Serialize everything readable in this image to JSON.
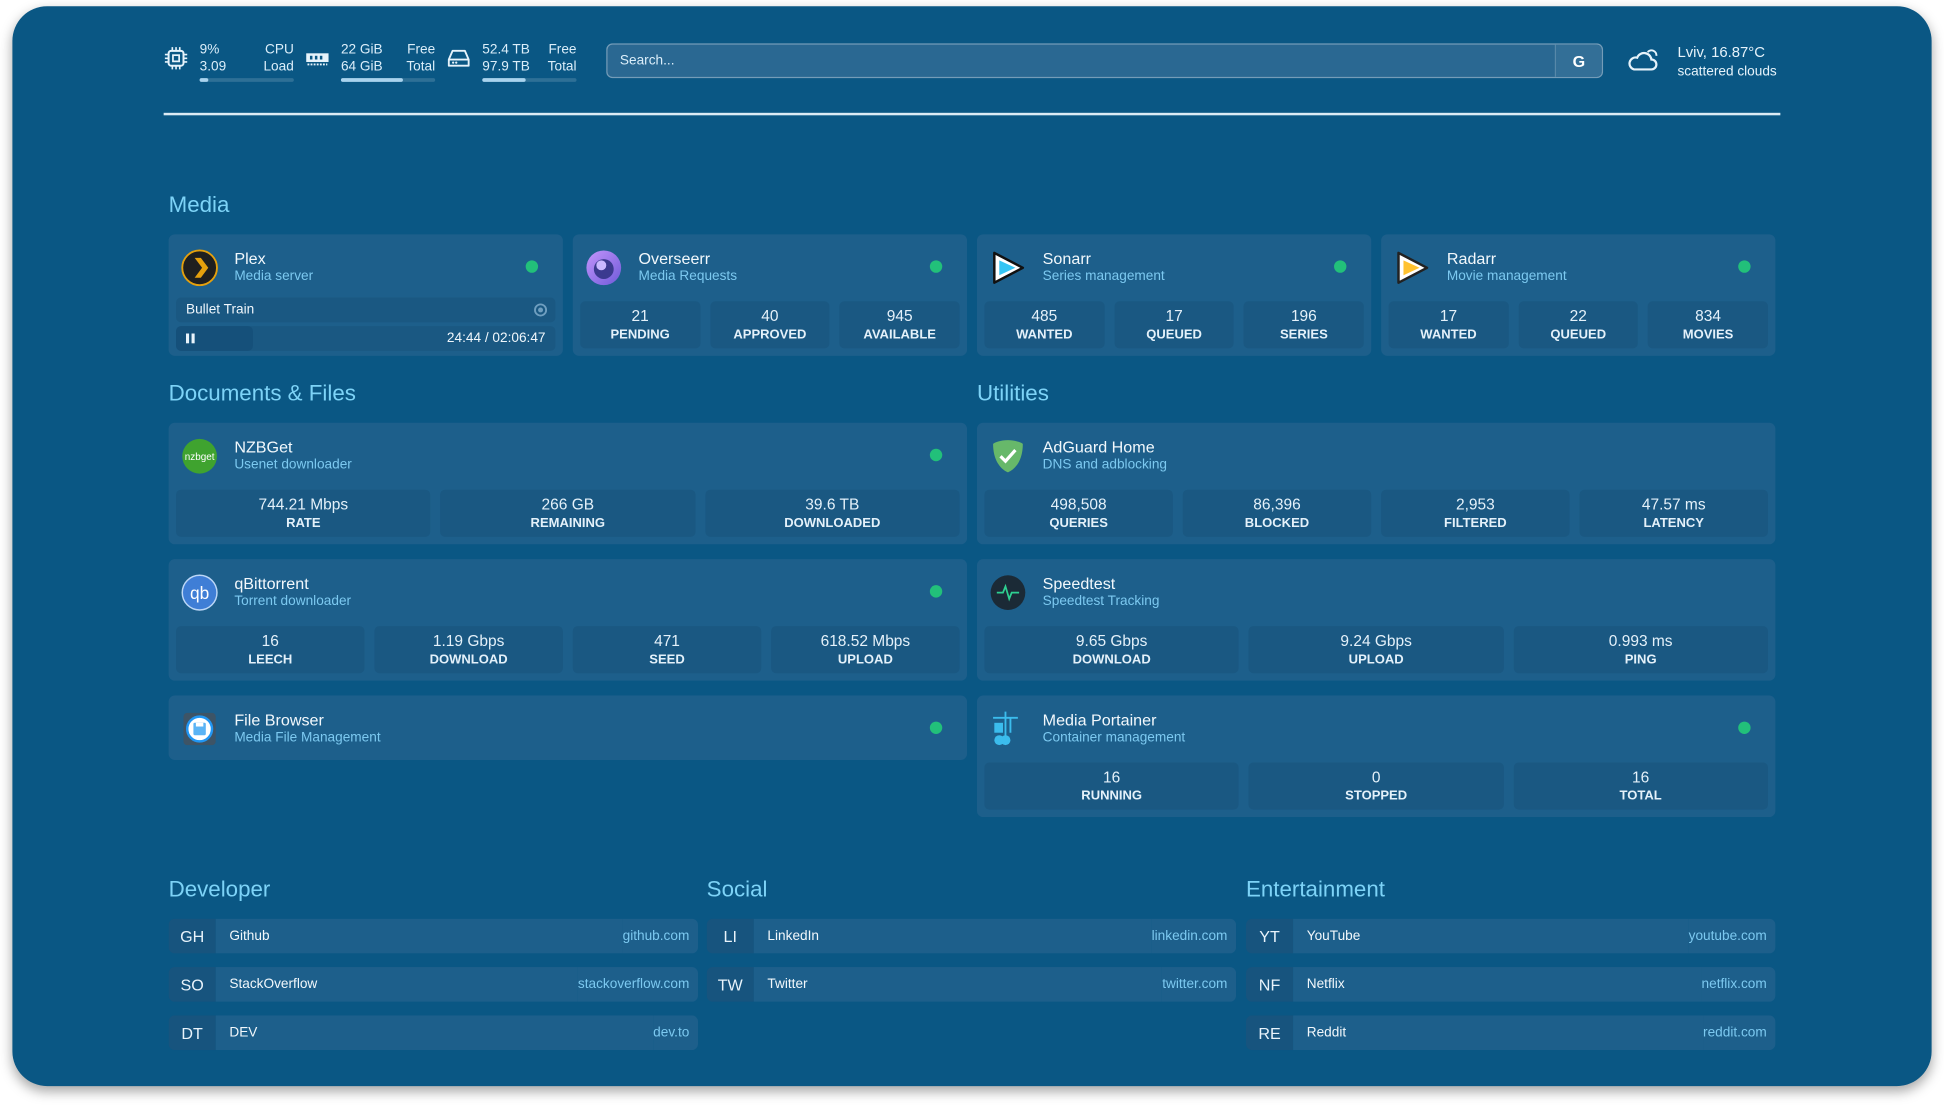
{
  "topbar": {
    "cpu": {
      "icon": "cpu-icon",
      "v1": "9%",
      "l1": "CPU",
      "v2": "3.09",
      "l2": "Load",
      "fill": 0.09
    },
    "memory": {
      "icon": "memory-icon",
      "v1": "22 GiB",
      "l1": "Free",
      "v2": "64 GiB",
      "l2": "Total",
      "fill": 0.66
    },
    "disk": {
      "icon": "disk-icon",
      "v1": "52.4 TB",
      "l1": "Free",
      "v2": "97.9 TB",
      "l2": "Total",
      "fill": 0.46
    },
    "search": {
      "placeholder": "Search...",
      "button": "G"
    },
    "weather": {
      "icon": "cloud-icon",
      "location": "Lviv, 16.87°C",
      "condition": "scattered clouds"
    }
  },
  "colors": {
    "background": "#0a5784",
    "card": "#1d5f8b",
    "accent": "#7dd3f7",
    "status_ok": "#22c07a"
  },
  "sections": {
    "media": "Media",
    "documents": "Documents & Files",
    "utilities": "Utilities",
    "developer": "Developer",
    "social": "Social",
    "entertainment": "Entertainment"
  },
  "media": [
    {
      "name": "Plex",
      "desc": "Media server",
      "icon": "plex-icon",
      "now_playing": {
        "title": "Bullet Train",
        "time": "24:44 / 02:06:47",
        "state": "paused"
      }
    },
    {
      "name": "Overseerr",
      "desc": "Media Requests",
      "icon": "overseerr-icon",
      "stats": [
        {
          "v": "21",
          "l": "PENDING"
        },
        {
          "v": "40",
          "l": "APPROVED"
        },
        {
          "v": "945",
          "l": "AVAILABLE"
        }
      ]
    },
    {
      "name": "Sonarr",
      "desc": "Series management",
      "icon": "sonarr-icon",
      "stats": [
        {
          "v": "485",
          "l": "WANTED"
        },
        {
          "v": "17",
          "l": "QUEUED"
        },
        {
          "v": "196",
          "l": "SERIES"
        }
      ]
    },
    {
      "name": "Radarr",
      "desc": "Movie management",
      "icon": "radarr-icon",
      "stats": [
        {
          "v": "17",
          "l": "WANTED"
        },
        {
          "v": "22",
          "l": "QUEUED"
        },
        {
          "v": "834",
          "l": "MOVIES"
        }
      ]
    }
  ],
  "documents": [
    {
      "name": "NZBGet",
      "desc": "Usenet downloader",
      "icon": "nzbget-icon",
      "stats": [
        {
          "v": "744.21 Mbps",
          "l": "RATE"
        },
        {
          "v": "266 GB",
          "l": "REMAINING"
        },
        {
          "v": "39.6 TB",
          "l": "DOWNLOADED"
        }
      ]
    },
    {
      "name": "qBittorrent",
      "desc": "Torrent downloader",
      "icon": "qbittorrent-icon",
      "stats": [
        {
          "v": "16",
          "l": "LEECH"
        },
        {
          "v": "1.19 Gbps",
          "l": "DOWNLOAD"
        },
        {
          "v": "471",
          "l": "SEED"
        },
        {
          "v": "618.52 Mbps",
          "l": "UPLOAD"
        }
      ]
    },
    {
      "name": "File Browser",
      "desc": "Media File Management",
      "icon": "filebrowser-icon"
    }
  ],
  "utilities": [
    {
      "name": "AdGuard Home",
      "desc": "DNS and adblocking",
      "icon": "adguard-icon",
      "nodot": true,
      "stats": [
        {
          "v": "498,508",
          "l": "QUERIES"
        },
        {
          "v": "86,396",
          "l": "BLOCKED"
        },
        {
          "v": "2,953",
          "l": "FILTERED"
        },
        {
          "v": "47.57 ms",
          "l": "LATENCY"
        }
      ]
    },
    {
      "name": "Speedtest",
      "desc": "Speedtest Tracking",
      "icon": "speedtest-icon",
      "nodot": true,
      "stats": [
        {
          "v": "9.65 Gbps",
          "l": "DOWNLOAD"
        },
        {
          "v": "9.24 Gbps",
          "l": "UPLOAD"
        },
        {
          "v": "0.993 ms",
          "l": "PING"
        }
      ]
    },
    {
      "name": "Media Portainer",
      "desc": "Container management",
      "icon": "portainer-icon",
      "stats": [
        {
          "v": "16",
          "l": "RUNNING"
        },
        {
          "v": "0",
          "l": "STOPPED"
        },
        {
          "v": "16",
          "l": "TOTAL"
        }
      ]
    }
  ],
  "bookmarks": {
    "developer": [
      {
        "abbr": "GH",
        "name": "Github",
        "url": "github.com"
      },
      {
        "abbr": "SO",
        "name": "StackOverflow",
        "url": "stackoverflow.com"
      },
      {
        "abbr": "DT",
        "name": "DEV",
        "url": "dev.to"
      }
    ],
    "social": [
      {
        "abbr": "LI",
        "name": "LinkedIn",
        "url": "linkedin.com"
      },
      {
        "abbr": "TW",
        "name": "Twitter",
        "url": "twitter.com"
      }
    ],
    "entertainment": [
      {
        "abbr": "YT",
        "name": "YouTube",
        "url": "youtube.com"
      },
      {
        "abbr": "NF",
        "name": "Netflix",
        "url": "netflix.com"
      },
      {
        "abbr": "RE",
        "name": "Reddit",
        "url": "reddit.com"
      }
    ]
  }
}
